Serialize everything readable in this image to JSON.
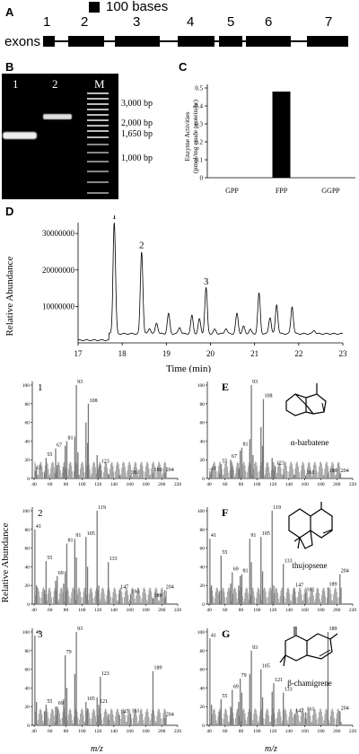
{
  "panels": {
    "A": "A",
    "B": "B",
    "C": "C",
    "D": "D",
    "E": "E",
    "F": "F",
    "G": "G"
  },
  "gene": {
    "scale_label": "100 bases",
    "row_label": "exons",
    "exon_numbers": [
      "1",
      "2",
      "3",
      "4",
      "5",
      "6",
      "7"
    ]
  },
  "gel": {
    "lanes": [
      "1",
      "2",
      "M"
    ],
    "markers": [
      "3,000 bp",
      "2,000 bp",
      "1,650 bp",
      "1,000 bp"
    ]
  },
  "enzyme_chart": {
    "chart_data": {
      "type": "bar",
      "categories": [
        "GPP",
        "FPP",
        "GGPP"
      ],
      "values": [
        0,
        0.48,
        0
      ],
      "ylabel_lines": [
        "Enzyme Activities",
        "(pmol/mg crude protein/hr)"
      ],
      "yticks": [
        "0",
        "0.1",
        "0.2",
        "0.3",
        "0.4",
        "0.5"
      ],
      "ylim": [
        0,
        0.5
      ]
    }
  },
  "chromatogram": {
    "ylabel": "Relative Abundance",
    "xlabel": "Time (min)",
    "yticks": [
      "30000000",
      "20000000",
      "10000000"
    ],
    "xticks": [
      "17",
      "18",
      "19",
      "20",
      "21",
      "22",
      "23"
    ],
    "peak_labels": [
      "1",
      "2",
      "3"
    ],
    "chart_data": {
      "type": "line",
      "peaks_min": [
        17.82,
        18.44,
        18.62,
        18.78,
        19.05,
        19.3,
        19.58,
        19.75,
        19.9,
        20.1,
        20.35,
        20.6,
        20.75,
        20.9,
        21.1,
        21.35,
        21.5,
        21.85,
        22.35
      ],
      "peaks_abundance": [
        30500000,
        22500000,
        1500000,
        3000000,
        5500000,
        1800000,
        5000000,
        4000000,
        12500000,
        1200000,
        1500000,
        5500000,
        2000000,
        1200000,
        11000000,
        4500000,
        8000000,
        7500000,
        1000000
      ],
      "xlim": [
        17,
        23
      ],
      "ylim": [
        0,
        32000000
      ]
    }
  },
  "mass_spectra": {
    "shared_ylabel": "Relative Abundance",
    "shared_xlabel": "m/z",
    "spectra": [
      {
        "tag": "1",
        "compound": "",
        "yticks": [
          "100",
          "80",
          "60",
          "40",
          "20",
          "0"
        ],
        "xticks": [
          "40",
          "60",
          "80",
          "100",
          "120",
          "140",
          "160",
          "180",
          "200",
          "220"
        ],
        "labels": [
          "93",
          "108",
          "81",
          "67",
          "55",
          "41",
          "123",
          "161",
          "189",
          "204"
        ],
        "chart_data": {
          "type": "bar",
          "mz": [
            41,
            43,
            53,
            55,
            67,
            69,
            77,
            79,
            81,
            91,
            93,
            95,
            105,
            107,
            108,
            119,
            121,
            123,
            133,
            147,
            161,
            189,
            204
          ],
          "rel": [
            8,
            10,
            6,
            22,
            32,
            14,
            12,
            35,
            40,
            45,
            100,
            28,
            60,
            38,
            80,
            25,
            12,
            15,
            5,
            4,
            3,
            6,
            6
          ]
        }
      },
      {
        "tag": "E",
        "compound": "α-barbatene",
        "yticks": [
          "100",
          "80",
          "60",
          "40",
          "20",
          "0"
        ],
        "xticks": [
          "40",
          "60",
          "80",
          "100",
          "120",
          "140",
          "160",
          "180",
          "200",
          "220"
        ],
        "labels": [
          "93",
          "108",
          "81",
          "67",
          "55",
          "41",
          "123",
          "161",
          "189",
          "204"
        ],
        "chart_data": {
          "type": "bar",
          "mz": [
            41,
            43,
            53,
            55,
            67,
            69,
            77,
            79,
            81,
            91,
            93,
            95,
            105,
            107,
            108,
            119,
            121,
            123,
            133,
            147,
            161,
            189,
            204
          ],
          "rel": [
            7,
            9,
            5,
            15,
            20,
            12,
            10,
            30,
            33,
            42,
            100,
            25,
            55,
            35,
            85,
            22,
            10,
            13,
            4,
            4,
            3,
            5,
            5
          ]
        }
      },
      {
        "tag": "2",
        "compound": "",
        "yticks": [
          "100",
          "80",
          "60",
          "40",
          "20",
          "0"
        ],
        "xticks": [
          "40",
          "60",
          "80",
          "100",
          "120",
          "140",
          "160",
          "180",
          "200",
          "220"
        ],
        "labels": [
          "119",
          "41",
          "91",
          "105",
          "81",
          "55",
          "69",
          "133",
          "147",
          "161",
          "189",
          "204"
        ],
        "chart_data": {
          "type": "bar",
          "mz": [
            41,
            43,
            53,
            55,
            67,
            69,
            77,
            79,
            81,
            91,
            93,
            105,
            107,
            119,
            121,
            133,
            147,
            161,
            189,
            204
          ],
          "rel": [
            80,
            20,
            15,
            46,
            25,
            30,
            22,
            35,
            65,
            70,
            50,
            72,
            40,
            100,
            20,
            45,
            15,
            10,
            6,
            15
          ]
        }
      },
      {
        "tag": "F",
        "compound": "thujopsene",
        "yticks": [
          "100",
          "80",
          "60",
          "40",
          "20",
          "0"
        ],
        "xticks": [
          "40",
          "60",
          "80",
          "100",
          "120",
          "140",
          "160",
          "180",
          "200",
          "220"
        ],
        "labels": [
          "119",
          "41",
          "91",
          "105",
          "55",
          "69",
          "81",
          "133",
          "147",
          "161",
          "189",
          "204"
        ],
        "chart_data": {
          "type": "bar",
          "mz": [
            41,
            43,
            53,
            55,
            67,
            69,
            77,
            79,
            81,
            91,
            93,
            105,
            107,
            119,
            121,
            133,
            147,
            161,
            189,
            204
          ],
          "rel": [
            70,
            20,
            14,
            52,
            22,
            34,
            20,
            30,
            32,
            70,
            45,
            72,
            35,
            100,
            20,
            43,
            17,
            12,
            18,
            32
          ]
        }
      },
      {
        "tag": "3",
        "compound": "",
        "yticks": [
          "100",
          "80",
          "60",
          "40",
          "20",
          "0"
        ],
        "xticks": [
          "40",
          "60",
          "80",
          "100",
          "120",
          "140",
          "160",
          "180",
          "200",
          "220"
        ],
        "labels": [
          "41",
          "93",
          "79",
          "69",
          "55",
          "105",
          "121",
          "123",
          "147",
          "161",
          "189",
          "204"
        ],
        "chart_data": {
          "type": "bar",
          "mz": [
            41,
            43,
            53,
            55,
            67,
            69,
            77,
            79,
            81,
            91,
            93,
            105,
            107,
            119,
            121,
            123,
            133,
            147,
            161,
            189,
            204
          ],
          "rel": [
            96,
            25,
            15,
            22,
            20,
            20,
            28,
            75,
            40,
            55,
            100,
            25,
            18,
            30,
            22,
            52,
            12,
            11,
            12,
            58,
            8
          ]
        }
      },
      {
        "tag": "G",
        "compound": "β-chamigrene",
        "yticks": [
          "100",
          "80",
          "60",
          "40",
          "20",
          "0"
        ],
        "xticks": [
          "40",
          "60",
          "80",
          "100",
          "120",
          "140",
          "160",
          "180",
          "200",
          "220"
        ],
        "labels": [
          "41",
          "93",
          "79",
          "69",
          "55",
          "105",
          "121",
          "133",
          "147",
          "161",
          "189",
          "204"
        ],
        "chart_data": {
          "type": "bar",
          "mz": [
            41,
            43,
            53,
            55,
            67,
            69,
            77,
            79,
            81,
            91,
            93,
            105,
            107,
            119,
            121,
            133,
            147,
            161,
            189,
            204
          ],
          "rel": [
            93,
            22,
            14,
            28,
            20,
            38,
            25,
            50,
            35,
            55,
            80,
            60,
            30,
            36,
            45,
            35,
            12,
            14,
            100,
            15
          ]
        }
      }
    ]
  }
}
